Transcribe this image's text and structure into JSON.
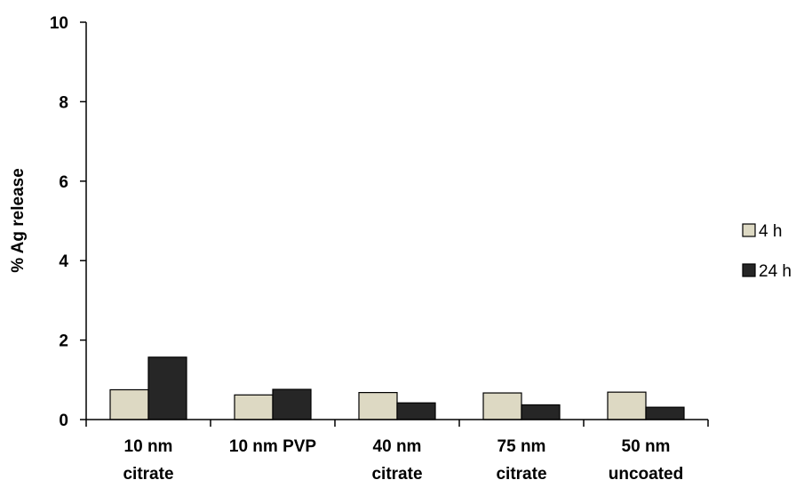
{
  "chart_data": {
    "type": "bar",
    "categories": [
      [
        "10 nm",
        "citrate"
      ],
      [
        "10 nm PVP"
      ],
      [
        "40 nm",
        "citrate"
      ],
      [
        "75 nm",
        "citrate"
      ],
      [
        "50 nm",
        "uncoated"
      ]
    ],
    "series": [
      {
        "name": "4 h",
        "color": "#ddd9c3",
        "values": [
          0.75,
          0.62,
          0.68,
          0.67,
          0.69
        ]
      },
      {
        "name": "24 h",
        "color": "#262626",
        "values": [
          1.57,
          0.76,
          0.42,
          0.37,
          0.31
        ]
      }
    ],
    "title": "",
    "xlabel": "",
    "ylabel": "% Ag release",
    "ylim": [
      0,
      10
    ],
    "yticks": [
      0,
      2,
      4,
      6,
      8,
      10
    ],
    "grid": false,
    "legend_position": "right"
  }
}
